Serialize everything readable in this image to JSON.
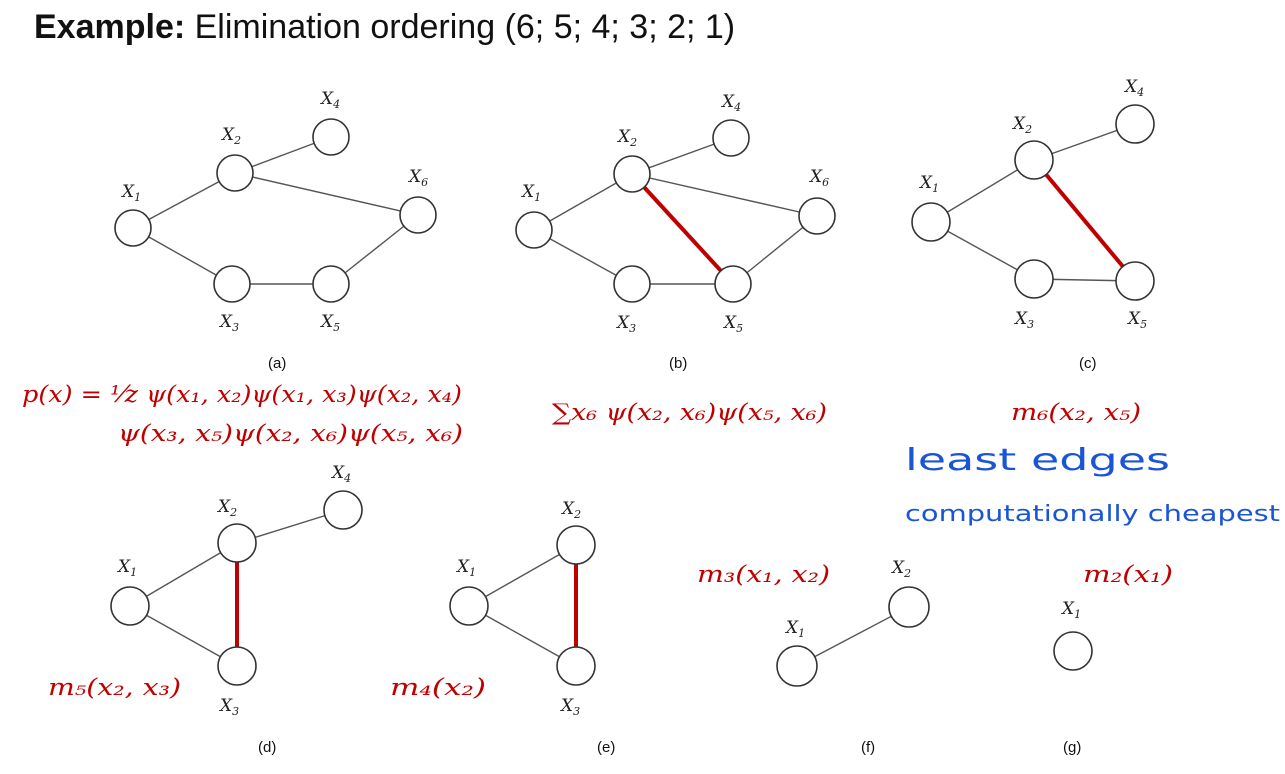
{
  "title": {
    "bold": "Example:",
    "rest": " Elimination ordering (6; 5; 4; 3; 2; 1)"
  },
  "colors": {
    "fill_in_edge": "#c00000",
    "annotation_red": "#c00000",
    "handwriting_blue": "#1a55d6"
  },
  "panels": [
    {
      "id": "a",
      "caption": "(a)",
      "nodes": [
        "X1",
        "X2",
        "X3",
        "X4",
        "X5",
        "X6"
      ],
      "fill_in_edges": []
    },
    {
      "id": "b",
      "caption": "(b)",
      "nodes": [
        "X1",
        "X2",
        "X3",
        "X4",
        "X5",
        "X6"
      ],
      "fill_in_edges": [
        [
          "X2",
          "X5"
        ]
      ]
    },
    {
      "id": "c",
      "caption": "(c)",
      "nodes": [
        "X1",
        "X2",
        "X3",
        "X4",
        "X5"
      ],
      "fill_in_edges": [
        [
          "X2",
          "X5"
        ]
      ]
    },
    {
      "id": "d",
      "caption": "(d)",
      "nodes": [
        "X1",
        "X2",
        "X3",
        "X4"
      ],
      "fill_in_edges": [
        [
          "X2",
          "X3"
        ]
      ]
    },
    {
      "id": "e",
      "caption": "(e)",
      "nodes": [
        "X1",
        "X2",
        "X3"
      ],
      "fill_in_edges": [
        [
          "X2",
          "X3"
        ]
      ]
    },
    {
      "id": "f",
      "caption": "(f)",
      "nodes": [
        "X1",
        "X2"
      ],
      "fill_in_edges": []
    },
    {
      "id": "g",
      "caption": "(g)",
      "nodes": [
        "X1"
      ],
      "fill_in_edges": []
    }
  ],
  "node_labels": {
    "X": "X",
    "subscripts": [
      "1",
      "2",
      "3",
      "4",
      "5",
      "6"
    ]
  },
  "annotations": {
    "joint_line1": "p(x) = ¹⁄z ψ(x₁, x₂)ψ(x₁, x₃)ψ(x₂, x₄)",
    "joint_line2": "ψ(x₃, x₅)ψ(x₂, x₆)ψ(x₅, x₆)",
    "sum_x6": "∑x₆ ψ(x₂, x₆)ψ(x₅, x₆)",
    "m6": "m₆(x₂, x₅)",
    "m5": "m₅(x₂, x₃)",
    "m4": "m₄(x₂)",
    "m3": "m₃(x₁, x₂)",
    "m2": "m₂(x₁)"
  },
  "handwriting": {
    "line1": "least  edges",
    "line2": "computationally cheapest"
  }
}
